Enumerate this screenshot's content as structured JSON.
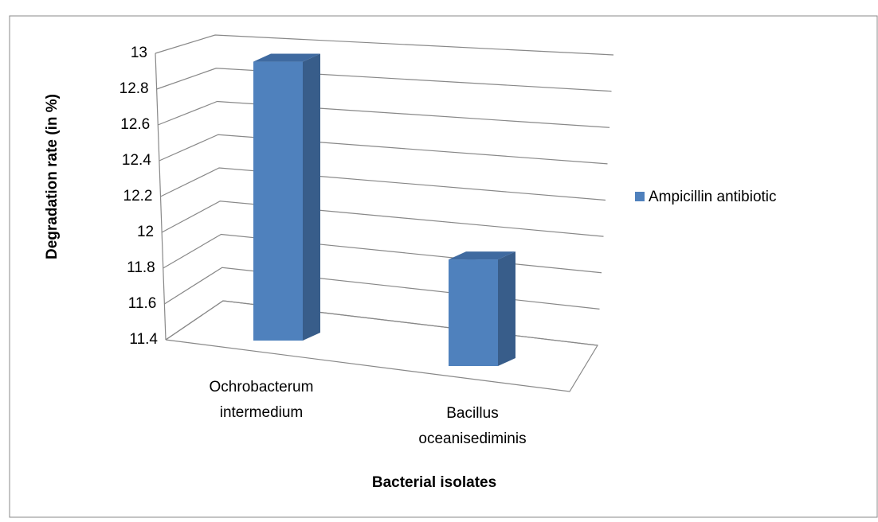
{
  "chart_data": {
    "type": "bar3d",
    "categories": [
      "Ochrobacterum intermedium",
      "Bacillus oceanisediminis"
    ],
    "series": [
      {
        "name": "Ampicillin antibiotic",
        "color": "#4f81bd",
        "values": [
          12.97,
          12.0
        ]
      }
    ],
    "ylim": [
      11.4,
      13
    ],
    "yticks": [
      11.4,
      11.6,
      11.8,
      12,
      12.2,
      12.4,
      12.6,
      12.8,
      13
    ],
    "y_label": "Degradation rate (in %)",
    "x_label": "Bacterial isolates",
    "grid": true,
    "legend": "right"
  }
}
